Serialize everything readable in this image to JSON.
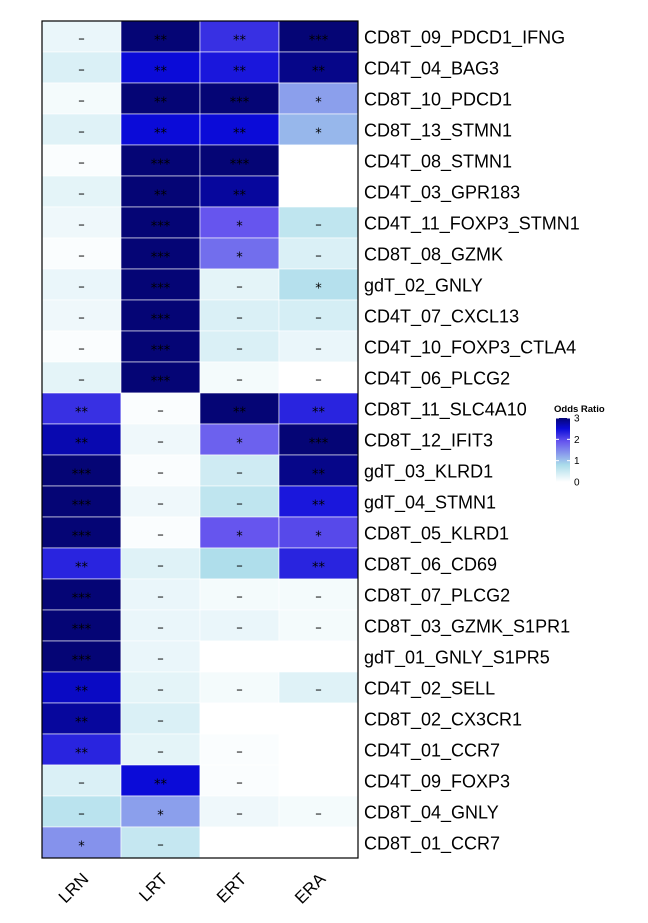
{
  "chart_data": {
    "type": "heatmap",
    "columns": [
      "LRN",
      "LRT",
      "ERT",
      "ERA"
    ],
    "rows": [
      "CD8T_09_PDCD1_IFNG",
      "CD4T_04_BAG3",
      "CD8T_10_PDCD1",
      "CD8T_13_STMN1",
      "CD4T_08_STMN1",
      "CD4T_03_GPR183",
      "CD4T_11_FOXP3_STMN1",
      "CD8T_08_GZMK",
      "gdT_02_GNLY",
      "CD4T_07_CXCL13",
      "CD4T_10_FOXP3_CTLA4",
      "CD4T_06_PLCG2",
      "CD8T_11_SLC4A10",
      "CD8T_12_IFIT3",
      "gdT_03_KLRD1",
      "gdT_04_STMN1",
      "CD8T_05_KLRD1",
      "CD8T_06_CD69",
      "CD8T_07_PLCG2",
      "CD8T_03_GZMK_S1PR1",
      "gdT_01_GNLY_S1PR5",
      "CD4T_02_SELL",
      "CD8T_02_CX3CR1",
      "CD4T_01_CCR7",
      "CD4T_09_FOXP3",
      "CD8T_04_GNLY",
      "CD8T_01_CCR7"
    ],
    "values": [
      [
        0.2,
        3.0,
        2.2,
        3.0
      ],
      [
        0.35,
        2.5,
        2.4,
        2.9
      ],
      [
        0.1,
        3.0,
        3.0,
        1.3
      ],
      [
        0.3,
        2.5,
        2.5,
        1.1
      ],
      [
        0.05,
        3.0,
        3.0,
        0.0
      ],
      [
        0.25,
        3.0,
        2.8,
        0.0
      ],
      [
        0.15,
        3.0,
        1.9,
        0.6
      ],
      [
        0.05,
        3.0,
        1.7,
        0.35
      ],
      [
        0.2,
        3.0,
        0.25,
        0.7
      ],
      [
        0.15,
        3.0,
        0.35,
        0.4
      ],
      [
        0.05,
        3.0,
        0.35,
        0.2
      ],
      [
        0.25,
        3.0,
        0.1,
        0.0
      ],
      [
        2.2,
        0.05,
        3.0,
        2.3
      ],
      [
        2.7,
        0.15,
        1.8,
        3.0
      ],
      [
        3.0,
        0.05,
        0.45,
        2.9
      ],
      [
        3.0,
        0.15,
        0.6,
        2.4
      ],
      [
        3.0,
        0.05,
        1.9,
        2.0
      ],
      [
        2.3,
        0.3,
        0.75,
        2.3
      ],
      [
        3.0,
        0.2,
        0.1,
        0.1
      ],
      [
        3.0,
        0.2,
        0.2,
        0.1
      ],
      [
        3.0,
        0.2,
        0.0,
        0.0
      ],
      [
        2.6,
        0.25,
        0.1,
        0.3
      ],
      [
        2.8,
        0.35,
        0.0,
        0.0
      ],
      [
        2.3,
        0.25,
        0.05,
        0.0
      ],
      [
        0.35,
        2.5,
        0.05,
        0.0
      ],
      [
        0.65,
        1.3,
        0.15,
        0.1
      ],
      [
        1.4,
        0.55,
        0.0,
        0.0
      ]
    ],
    "significance": [
      [
        "–",
        "**",
        "**",
        "***"
      ],
      [
        "–",
        "**",
        "**",
        "**"
      ],
      [
        "–",
        "**",
        "***",
        "*"
      ],
      [
        "–",
        "**",
        "**",
        "*"
      ],
      [
        "–",
        "***",
        "***",
        ""
      ],
      [
        "–",
        "**",
        "**",
        ""
      ],
      [
        "–",
        "***",
        "*",
        "–"
      ],
      [
        "–",
        "***",
        "*",
        "–"
      ],
      [
        "–",
        "***",
        "–",
        "*"
      ],
      [
        "–",
        "***",
        "–",
        "–"
      ],
      [
        "–",
        "***",
        "–",
        "–"
      ],
      [
        "–",
        "***",
        "–",
        "–"
      ],
      [
        "**",
        "–",
        "**",
        "**"
      ],
      [
        "**",
        "–",
        "*",
        "***"
      ],
      [
        "***",
        "–",
        "–",
        "**"
      ],
      [
        "***",
        "–",
        "–",
        "**"
      ],
      [
        "***",
        "–",
        "*",
        "*"
      ],
      [
        "**",
        "–",
        "–",
        "**"
      ],
      [
        "***",
        "–",
        "–",
        "–"
      ],
      [
        "***",
        "–",
        "–",
        "–"
      ],
      [
        "***",
        "–",
        "",
        ""
      ],
      [
        "**",
        "–",
        "–",
        "–"
      ],
      [
        "**",
        "–",
        "",
        ""
      ],
      [
        "**",
        "–",
        "–",
        ""
      ],
      [
        "–",
        "**",
        "–",
        ""
      ],
      [
        "–",
        "*",
        "–",
        "–"
      ],
      [
        "*",
        "–",
        "",
        ""
      ]
    ],
    "legend": {
      "title": "Odds Ratio",
      "ticks": [
        0,
        1,
        2,
        3
      ],
      "range": [
        0,
        3
      ],
      "colors": [
        "#ffffff",
        "#aadcea",
        "#6655ee",
        "#0b0bd8",
        "#050575"
      ]
    }
  }
}
